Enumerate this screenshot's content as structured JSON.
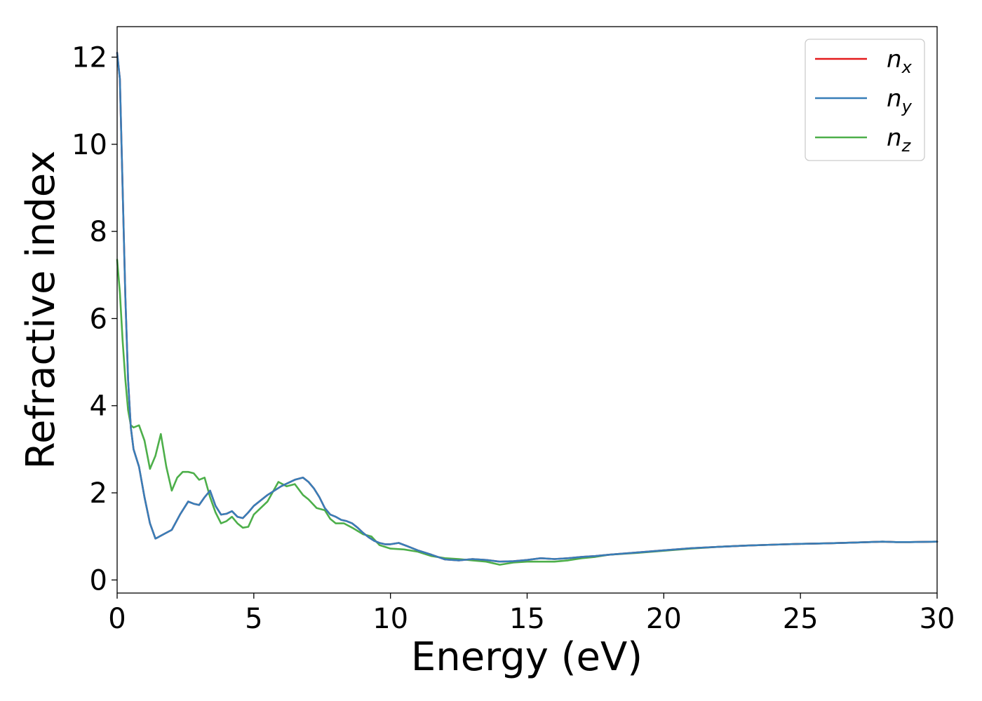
{
  "chart_data": {
    "type": "line",
    "xlabel": "Energy (eV)",
    "ylabel": "Refractive index",
    "xlim": [
      0,
      30
    ],
    "ylim": [
      -0.3,
      12.7
    ],
    "xticks": [
      0,
      5,
      10,
      15,
      20,
      25,
      30
    ],
    "yticks": [
      0,
      2,
      4,
      6,
      8,
      10,
      12
    ],
    "grid": false,
    "legend_position": "top-right",
    "series": [
      {
        "name": "n",
        "subscript": "x",
        "color": "#e41a1c",
        "x": [
          0,
          0.1,
          0.2,
          0.3,
          0.4,
          0.5,
          0.6,
          0.8,
          1.0,
          1.2,
          1.4,
          1.5,
          1.7,
          2.0,
          2.3,
          2.6,
          2.8,
          3.0,
          3.2,
          3.4,
          3.6,
          3.8,
          4.0,
          4.2,
          4.4,
          4.6,
          4.8,
          5.0,
          5.5,
          6.0,
          6.5,
          6.8,
          7.0,
          7.2,
          7.4,
          7.6,
          7.8,
          8.0,
          8.2,
          8.4,
          8.6,
          8.8,
          9.0,
          9.2,
          9.4,
          9.6,
          9.8,
          10.0,
          10.3,
          10.6,
          11.0,
          11.5,
          12.0,
          12.5,
          13.0,
          13.5,
          14.0,
          14.5,
          15.0,
          15.5,
          16.0,
          16.5,
          17.0,
          17.5,
          18.0,
          19.0,
          20.0,
          21.0,
          22.0,
          23.0,
          24.0,
          25.0,
          26.0,
          27.0,
          28.0,
          28.5,
          29.0,
          30.0
        ],
        "y": [
          12.1,
          11.5,
          9.0,
          6.5,
          4.6,
          3.5,
          3.0,
          2.6,
          1.9,
          1.3,
          0.95,
          0.98,
          1.05,
          1.15,
          1.5,
          1.8,
          1.75,
          1.72,
          1.9,
          2.05,
          1.7,
          1.5,
          1.52,
          1.58,
          1.45,
          1.42,
          1.55,
          1.7,
          1.95,
          2.15,
          2.3,
          2.35,
          2.25,
          2.1,
          1.9,
          1.65,
          1.5,
          1.45,
          1.38,
          1.35,
          1.3,
          1.2,
          1.08,
          0.98,
          0.9,
          0.85,
          0.82,
          0.82,
          0.85,
          0.78,
          0.68,
          0.58,
          0.47,
          0.45,
          0.48,
          0.46,
          0.42,
          0.43,
          0.46,
          0.5,
          0.48,
          0.5,
          0.53,
          0.55,
          0.58,
          0.63,
          0.68,
          0.73,
          0.76,
          0.79,
          0.81,
          0.83,
          0.84,
          0.86,
          0.88,
          0.87,
          0.87,
          0.88
        ]
      },
      {
        "name": "n",
        "subscript": "y",
        "color": "#377eb8",
        "x": [
          0,
          0.1,
          0.2,
          0.3,
          0.4,
          0.5,
          0.6,
          0.8,
          1.0,
          1.2,
          1.4,
          1.5,
          1.7,
          2.0,
          2.3,
          2.6,
          2.8,
          3.0,
          3.2,
          3.4,
          3.6,
          3.8,
          4.0,
          4.2,
          4.4,
          4.6,
          4.8,
          5.0,
          5.5,
          6.0,
          6.5,
          6.8,
          7.0,
          7.2,
          7.4,
          7.6,
          7.8,
          8.0,
          8.2,
          8.4,
          8.6,
          8.8,
          9.0,
          9.2,
          9.4,
          9.6,
          9.8,
          10.0,
          10.3,
          10.6,
          11.0,
          11.5,
          12.0,
          12.5,
          13.0,
          13.5,
          14.0,
          14.5,
          15.0,
          15.5,
          16.0,
          16.5,
          17.0,
          17.5,
          18.0,
          19.0,
          20.0,
          21.0,
          22.0,
          23.0,
          24.0,
          25.0,
          26.0,
          27.0,
          28.0,
          28.5,
          29.0,
          30.0
        ],
        "y": [
          12.1,
          11.5,
          9.0,
          6.5,
          4.6,
          3.5,
          3.0,
          2.6,
          1.9,
          1.3,
          0.95,
          0.98,
          1.05,
          1.15,
          1.5,
          1.8,
          1.75,
          1.72,
          1.9,
          2.05,
          1.7,
          1.5,
          1.52,
          1.58,
          1.45,
          1.42,
          1.55,
          1.7,
          1.95,
          2.15,
          2.3,
          2.35,
          2.25,
          2.1,
          1.9,
          1.65,
          1.5,
          1.45,
          1.38,
          1.35,
          1.3,
          1.2,
          1.08,
          0.98,
          0.9,
          0.85,
          0.82,
          0.82,
          0.85,
          0.78,
          0.68,
          0.58,
          0.47,
          0.45,
          0.48,
          0.46,
          0.42,
          0.43,
          0.46,
          0.5,
          0.48,
          0.5,
          0.53,
          0.55,
          0.58,
          0.63,
          0.68,
          0.73,
          0.76,
          0.79,
          0.81,
          0.83,
          0.84,
          0.86,
          0.88,
          0.87,
          0.87,
          0.88
        ]
      },
      {
        "name": "n",
        "subscript": "z",
        "color": "#4daf4a",
        "x": [
          0,
          0.1,
          0.2,
          0.3,
          0.4,
          0.5,
          0.6,
          0.8,
          1.0,
          1.2,
          1.4,
          1.6,
          1.8,
          2.0,
          2.2,
          2.4,
          2.6,
          2.8,
          3.0,
          3.2,
          3.4,
          3.6,
          3.8,
          4.0,
          4.2,
          4.4,
          4.6,
          4.8,
          5.0,
          5.5,
          5.9,
          6.2,
          6.5,
          6.8,
          7.0,
          7.3,
          7.6,
          7.8,
          8.0,
          8.3,
          8.6,
          9.0,
          9.3,
          9.6,
          10.0,
          10.5,
          11.0,
          11.5,
          12.0,
          12.5,
          13.0,
          13.5,
          14.0,
          14.5,
          15.0,
          15.5,
          16.0,
          16.5,
          17.0,
          17.5,
          18.0,
          19.0,
          20.0,
          21.0,
          22.0,
          23.0,
          24.0,
          25.0,
          26.0,
          27.0,
          28.0,
          28.5,
          29.0,
          30.0
        ],
        "y": [
          7.35,
          6.6,
          5.5,
          4.6,
          3.9,
          3.55,
          3.5,
          3.55,
          3.2,
          2.55,
          2.85,
          3.35,
          2.6,
          2.05,
          2.35,
          2.48,
          2.48,
          2.45,
          2.3,
          2.35,
          1.9,
          1.55,
          1.3,
          1.35,
          1.45,
          1.3,
          1.2,
          1.22,
          1.5,
          1.8,
          2.25,
          2.15,
          2.2,
          1.95,
          1.85,
          1.65,
          1.6,
          1.4,
          1.3,
          1.3,
          1.2,
          1.05,
          1.0,
          0.8,
          0.72,
          0.7,
          0.65,
          0.55,
          0.5,
          0.48,
          0.45,
          0.42,
          0.35,
          0.4,
          0.42,
          0.42,
          0.42,
          0.45,
          0.5,
          0.53,
          0.58,
          0.62,
          0.67,
          0.72,
          0.76,
          0.79,
          0.81,
          0.83,
          0.84,
          0.86,
          0.88,
          0.87,
          0.87,
          0.88
        ]
      }
    ]
  }
}
